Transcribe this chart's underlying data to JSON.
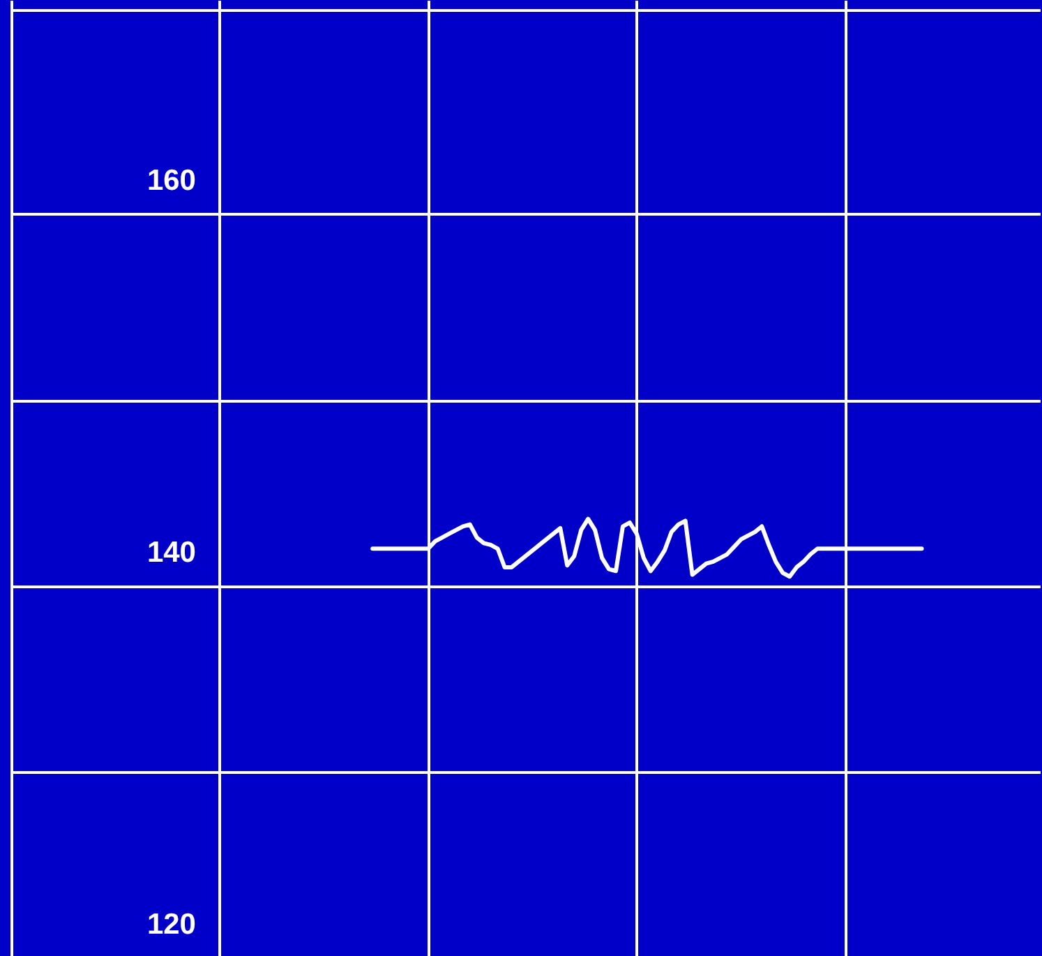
{
  "chart_data": {
    "type": "line",
    "categories": [
      null,
      null,
      null,
      null,
      null,
      null,
      null,
      null,
      null,
      null,
      null,
      null,
      null,
      null,
      null,
      null,
      null,
      null,
      null,
      null,
      null,
      null,
      null,
      null,
      null,
      null,
      null,
      null,
      null,
      null,
      null,
      null,
      null,
      null,
      null,
      null,
      null,
      null,
      null,
      null,
      null,
      null,
      null,
      null,
      null,
      null,
      null,
      null,
      null,
      null,
      null,
      null,
      null,
      null,
      null,
      null,
      null,
      null,
      null,
      null,
      null,
      null,
      null,
      null,
      null,
      null,
      null,
      null,
      null,
      null,
      null,
      null,
      null,
      null,
      null,
      null,
      null,
      null,
      null,
      null,
      null,
      null,
      null,
      null,
      null,
      null,
      null,
      null,
      null,
      null,
      null,
      null,
      null,
      null,
      null,
      null,
      null,
      null,
      null,
      null,
      null,
      null,
      null,
      null,
      null,
      null,
      null,
      null,
      null,
      null,
      null,
      null,
      null,
      null,
      null,
      null,
      null,
      null,
      null,
      null,
      null,
      null,
      null,
      null,
      null,
      null,
      null,
      null,
      null,
      null,
      null,
      null,
      null,
      null,
      null,
      null,
      null,
      null,
      null,
      null,
      null,
      null,
      null,
      null,
      null,
      null,
      null,
      null,
      null
    ],
    "series": [
      {
        "color": "#ffffff",
        "values": [
          null,
          null,
          null,
          null,
          null,
          null,
          null,
          null,
          null,
          null,
          null,
          null,
          null,
          null,
          null,
          null,
          null,
          null,
          null,
          null,
          null,
          null,
          null,
          null,
          null,
          null,
          null,
          null,
          null,
          null,
          null,
          null,
          null,
          null,
          null,
          null,
          null,
          null,
          null,
          null,
          null,
          null,
          null,
          null,
          null,
          null,
          null,
          null,
          null,
          null,
          null,
          null,
          140.2,
          140.2,
          140.2,
          140.2,
          140.2,
          140.2,
          140.2,
          140.2,
          140.2,
          140.6,
          140.8,
          141.0,
          141.2,
          141.4,
          141.5,
          140.8,
          140.5,
          140.4,
          140.2,
          139.2,
          139.2,
          139.5,
          139.8,
          140.1,
          140.4,
          140.7,
          141.0,
          141.3,
          139.3,
          139.8,
          141.2,
          141.8,
          141.2,
          139.7,
          139.1,
          139.0,
          141.4,
          141.6,
          141.0,
          139.7,
          139.0,
          139.5,
          140.1,
          141.1,
          141.5,
          141.7,
          138.8,
          139.1,
          139.4,
          139.5,
          139.7,
          139.9,
          140.3,
          140.7,
          140.9,
          141.1,
          141.4,
          140.4,
          139.5,
          138.9,
          138.7,
          139.2,
          139.5,
          139.9,
          140.2,
          140.2,
          140.2,
          140.2,
          140.2,
          140.2,
          140.2,
          140.2,
          140.2,
          140.2,
          140.2,
          140.2,
          140.2,
          140.2,
          140.2,
          140.2,
          null,
          null,
          null,
          null,
          null,
          null,
          null,
          null,
          null,
          null,
          null,
          null,
          null,
          null,
          null,
          null,
          null
        ]
      }
    ],
    "ylim": [
      118.3,
      169.7
    ],
    "yticks": [
      120,
      {
        "value": 128.2,
        "label": null
      },
      {
        "value": 138.2,
        "label": null
      },
      140,
      {
        "value": 148.2,
        "label": null
      },
      {
        "value": 158.2,
        "label": null
      },
      160,
      {
        "value": 169.2,
        "label": null
      }
    ],
    "grid": true,
    "tick_labels": "y"
  }
}
